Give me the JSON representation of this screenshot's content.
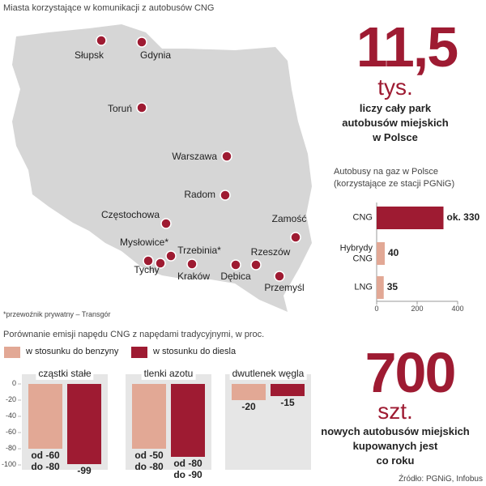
{
  "map": {
    "title": "Miasta korzystające w komunikacji z autobusów CNG",
    "cities": [
      "Słupsk",
      "Gdynia",
      "Toruń",
      "Warszawa",
      "Radom",
      "Częstochowa",
      "Zamość",
      "Mysłowice*",
      "Trzebinia*",
      "Tychy",
      "Kraków",
      "Dębica",
      "Rzeszów",
      "Przemyśl"
    ],
    "footnote": "*przewoźnik prywatny – Transgór"
  },
  "stat_fleet": {
    "number": "11,5",
    "unit": "tys.",
    "lines": [
      "liczy cały park",
      "autobusów miejskich",
      "w Polsce"
    ]
  },
  "stat_new": {
    "number": "700",
    "unit": "szt.",
    "lines": [
      "nowych autobusów miejskich",
      "kupowanych jest",
      "co roku"
    ]
  },
  "source": "Źródło: PGNiG, Infobus",
  "chart_data": [
    {
      "type": "hbar",
      "title": "Autobusy na gaz w Polsce",
      "subtitle": "(korzystające ze stacji PGNiG)",
      "categories": [
        "CNG",
        "Hybrydy CNG",
        "LNG"
      ],
      "values": [
        330,
        40,
        35
      ],
      "value_labels": [
        "ok. 330",
        "40",
        "35"
      ],
      "colors": [
        "#9e1b32",
        "#e2a895",
        "#e2a895"
      ],
      "xlim": [
        0,
        400
      ],
      "xticks": [
        0,
        200,
        400
      ]
    },
    {
      "type": "bar",
      "title": "Porównanie emisji napędu CNG z napędami tradycyjnymi, w proc.",
      "categories": [
        "cząstki stałe",
        "tlenki azotu",
        "dwutlenek węgla"
      ],
      "series": [
        {
          "name": "w stosunku do benzyny",
          "color": "#e2a895",
          "values": [
            -80,
            -80,
            -20
          ],
          "value_labels": [
            "od -60 do -80",
            "od -50 do -80",
            "-20"
          ]
        },
        {
          "name": "w stosunku do diesla",
          "color": "#9e1b32",
          "values": [
            -99,
            -90,
            -15
          ],
          "value_labels": [
            "-99",
            "od -80 do -90",
            "-15"
          ]
        }
      ],
      "ylim": [
        -100,
        0
      ],
      "yticks": [
        0,
        -20,
        -40,
        -60,
        -80,
        -100
      ]
    }
  ]
}
